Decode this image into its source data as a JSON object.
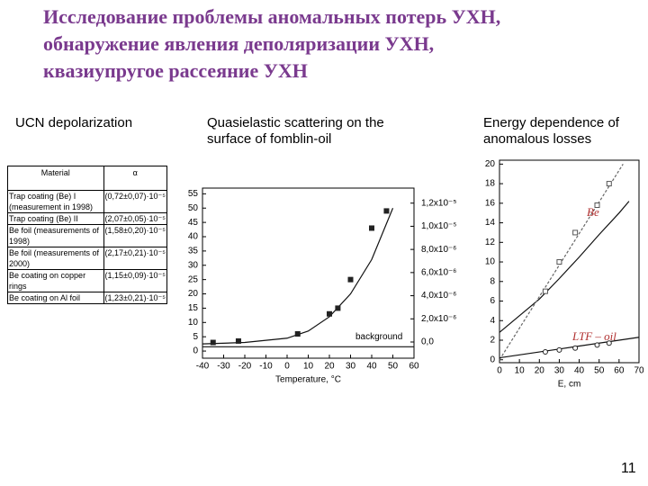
{
  "title_lines": [
    "Исследование проблемы аномальных потерь УХН,",
    "обнаружение явления деполяризации УХН,",
    "квазиупругое рассеяние УХН"
  ],
  "headings": [
    "UCN depolarization",
    "Quasielastic scattering on the surface of fomblin-oil",
    "Energy dependence of anomalous losses"
  ],
  "table": {
    "header": [
      "Material",
      "α"
    ],
    "rows": [
      [
        "Trap coating (Be) I (measurement in 1998)",
        "(0,72±0,07)·10⁻⁵"
      ],
      [
        "Trap coating (Be) II",
        "(2,07±0,05)·10⁻⁵"
      ],
      [
        "Be foil (measurements of 1998)",
        "(1,58±0,20)·10⁻⁵"
      ],
      [
        "Be foil (measurements of 2000)",
        "(2,17±0,21)·10⁻⁵"
      ],
      [
        "Be coating on copper rings",
        "(1,15±0,09)·10⁻⁵"
      ],
      [
        "Be coating on Al foil",
        "(1,23±0,21)·10⁻⁵"
      ]
    ]
  },
  "plots": [
    {
      "type": "scatter",
      "xlabel": "Temperature, °C",
      "annotation": "background",
      "xlim": [
        -40,
        60
      ],
      "xticks": [
        -40,
        -30,
        -20,
        -10,
        0,
        10,
        20,
        30,
        40,
        50,
        60
      ],
      "ylim": [
        -2.5,
        57
      ],
      "yticks": [
        0,
        5,
        10,
        15,
        20,
        25,
        30,
        35,
        40,
        45,
        50,
        55
      ],
      "y2lim": [
        -1.4e-06,
        1.33e-05
      ],
      "y2ticks": [
        {
          "value": 0,
          "label": "0,0"
        },
        {
          "value": 2e-06,
          "label": "2,0x10⁻⁶"
        },
        {
          "value": 4e-06,
          "label": "4,0x10⁻⁶"
        },
        {
          "value": 6e-06,
          "label": "6,0x10⁻⁶"
        },
        {
          "value": 8e-06,
          "label": "8,0x10⁻⁶"
        },
        {
          "value": 1e-05,
          "label": "1,0x10⁻⁵"
        },
        {
          "value": 1.2e-05,
          "label": "1,2x10⁻⁵"
        }
      ],
      "series": [
        {
          "color": "#222222",
          "marker": "filled-square",
          "x": [
            -35,
            -23,
            5,
            20,
            24,
            30,
            40,
            47
          ],
          "values": [
            3,
            3.5,
            6,
            13,
            15,
            25,
            43,
            49
          ]
        }
      ],
      "curves": [
        {
          "color": "#111111",
          "dash": false,
          "x": [
            -40,
            -20,
            0,
            10,
            20,
            30,
            40,
            50
          ],
          "values": [
            2.5,
            3,
            4.5,
            7,
            12,
            20,
            32,
            50
          ]
        },
        {
          "color": "#111111",
          "dash": false,
          "x": [
            -40,
            60
          ],
          "values": [
            1.5,
            1.5
          ]
        }
      ]
    },
    {
      "type": "scatter",
      "xlabel": "E, cm",
      "xlim": [
        0,
        70
      ],
      "xticks": [
        0,
        10,
        20,
        30,
        40,
        50,
        60,
        70
      ],
      "ylim": [
        -0.3,
        20.4
      ],
      "yticks": [
        0,
        2,
        4,
        6,
        8,
        10,
        12,
        14,
        16,
        18,
        20
      ],
      "series": [
        {
          "name": "Be",
          "color": "#555555",
          "marker": "open-square",
          "x": [
            23,
            30,
            38,
            49,
            55
          ],
          "values": [
            7,
            10,
            13,
            15.8,
            18
          ]
        },
        {
          "name": "LTF – oil",
          "color": "#222222",
          "marker": "open-circle",
          "x": [
            23,
            30,
            38,
            49,
            55
          ],
          "values": [
            0.8,
            1,
            1.2,
            1.5,
            1.7
          ]
        }
      ],
      "curves": [
        {
          "color": "#111111",
          "dash": false,
          "x": [
            0,
            10,
            20,
            30,
            40,
            50,
            60,
            65
          ],
          "values": [
            2.8,
            4.5,
            6.2,
            8.3,
            10.5,
            12.8,
            15,
            16.2
          ]
        },
        {
          "color": "#666666",
          "dash": true,
          "x": [
            0,
            62
          ],
          "values": [
            0,
            20
          ]
        },
        {
          "color": "#111111",
          "dash": false,
          "x": [
            0,
            10,
            20,
            30,
            40,
            50,
            60,
            70
          ],
          "values": [
            0.2,
            0.5,
            0.8,
            1.1,
            1.4,
            1.7,
            2.0,
            2.3
          ]
        }
      ]
    }
  ],
  "page_number": "11"
}
